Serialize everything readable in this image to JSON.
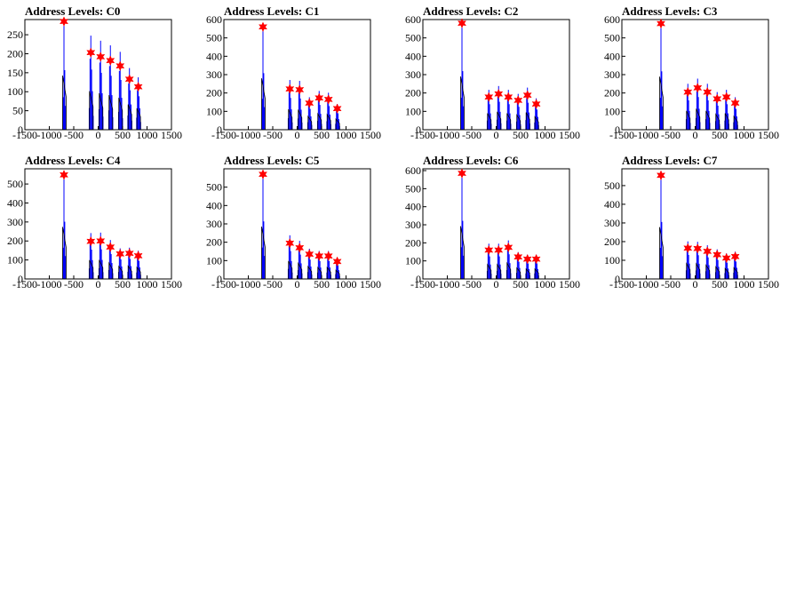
{
  "colors": {
    "histogram": "#0000ff",
    "outline": "#000000",
    "marker": "#ff0000",
    "background": "#ffffff"
  },
  "chart_data": [
    {
      "type": "bar",
      "title": "Address Levels: C0",
      "xlim": [
        -1500,
        1500
      ],
      "ylim": [
        0,
        290
      ],
      "xticks": [
        -1500,
        -1000,
        -500,
        0,
        500,
        1000,
        1500
      ],
      "xtick_labels": [
        "-1500",
        "-1000",
        "-500",
        "0",
        "500",
        "1000",
        "1500"
      ],
      "yticks": [
        0,
        50,
        100,
        150,
        200,
        250
      ],
      "ytick_labels": [
        "0",
        "50",
        "100",
        "150",
        "200",
        "250"
      ],
      "peaks": [
        {
          "x": -700,
          "y": 285
        },
        {
          "x": -150,
          "y": 203
        },
        {
          "x": 50,
          "y": 192
        },
        {
          "x": 250,
          "y": 182
        },
        {
          "x": 450,
          "y": 168
        },
        {
          "x": 640,
          "y": 133
        },
        {
          "x": 820,
          "y": 113
        }
      ]
    },
    {
      "type": "bar",
      "title": "Address Levels: C1",
      "xlim": [
        -1500,
        1500
      ],
      "ylim": [
        0,
        600
      ],
      "xticks": [
        -1500,
        -1000,
        -500,
        0,
        500,
        1000,
        1500
      ],
      "xtick_labels": [
        "-1500",
        "-1000",
        "-500",
        "0",
        "500",
        "1000",
        "1500"
      ],
      "yticks": [
        0,
        100,
        200,
        300,
        400,
        500,
        600
      ],
      "ytick_labels": [
        "0",
        "100",
        "200",
        "300",
        "400",
        "500",
        "600"
      ],
      "peaks": [
        {
          "x": -700,
          "y": 560
        },
        {
          "x": -150,
          "y": 222
        },
        {
          "x": 50,
          "y": 218
        },
        {
          "x": 250,
          "y": 145
        },
        {
          "x": 450,
          "y": 173
        },
        {
          "x": 640,
          "y": 165
        },
        {
          "x": 820,
          "y": 115
        }
      ]
    },
    {
      "type": "bar",
      "title": "Address Levels: C2",
      "xlim": [
        -1500,
        1500
      ],
      "ylim": [
        0,
        600
      ],
      "xticks": [
        -1500,
        -1000,
        -500,
        0,
        500,
        1000,
        1500
      ],
      "xtick_labels": [
        "-1500",
        "-1000",
        "-500",
        "0",
        "500",
        "1000",
        "1500"
      ],
      "yticks": [
        0,
        100,
        200,
        300,
        400,
        500,
        600
      ],
      "ytick_labels": [
        "0",
        "100",
        "200",
        "300",
        "400",
        "500",
        "600"
      ],
      "peaks": [
        {
          "x": -700,
          "y": 580
        },
        {
          "x": -150,
          "y": 178
        },
        {
          "x": 50,
          "y": 195
        },
        {
          "x": 250,
          "y": 178
        },
        {
          "x": 450,
          "y": 160
        },
        {
          "x": 640,
          "y": 188
        },
        {
          "x": 820,
          "y": 140
        }
      ]
    },
    {
      "type": "bar",
      "title": "Address Levels: C3",
      "xlim": [
        -1500,
        1500
      ],
      "ylim": [
        0,
        600
      ],
      "xticks": [
        -1500,
        -1000,
        -500,
        0,
        500,
        1000,
        1500
      ],
      "xtick_labels": [
        "-1500",
        "-1000",
        "-500",
        "0",
        "500",
        "1000",
        "1500"
      ],
      "yticks": [
        0,
        100,
        200,
        300,
        400,
        500,
        600
      ],
      "ytick_labels": [
        "0",
        "100",
        "200",
        "300",
        "400",
        "500",
        "600"
      ],
      "peaks": [
        {
          "x": -700,
          "y": 578
        },
        {
          "x": -150,
          "y": 205
        },
        {
          "x": 50,
          "y": 228
        },
        {
          "x": 250,
          "y": 205
        },
        {
          "x": 450,
          "y": 168
        },
        {
          "x": 640,
          "y": 178
        },
        {
          "x": 820,
          "y": 145
        }
      ]
    },
    {
      "type": "bar",
      "title": "Address Levels: C4",
      "xlim": [
        -1500,
        1500
      ],
      "ylim": [
        0,
        580
      ],
      "xticks": [
        -1500,
        -1000,
        -500,
        0,
        500,
        1000,
        1500
      ],
      "xtick_labels": [
        "-1500",
        "-1000",
        "-500",
        "0",
        "500",
        "1000",
        "1500"
      ],
      "yticks": [
        0,
        100,
        200,
        300,
        400,
        500
      ],
      "ytick_labels": [
        "0",
        "100",
        "200",
        "300",
        "400",
        "500"
      ],
      "peaks": [
        {
          "x": -700,
          "y": 548
        },
        {
          "x": -150,
          "y": 198
        },
        {
          "x": 50,
          "y": 200
        },
        {
          "x": 250,
          "y": 168
        },
        {
          "x": 450,
          "y": 132
        },
        {
          "x": 640,
          "y": 135
        },
        {
          "x": 820,
          "y": 122
        }
      ]
    },
    {
      "type": "bar",
      "title": "Address Levels: C5",
      "xlim": [
        -1500,
        1500
      ],
      "ylim": [
        0,
        600
      ],
      "xticks": [
        -1500,
        -1000,
        -500,
        0,
        500,
        1000,
        1500
      ],
      "xtick_labels": [
        "-1500",
        "-1000",
        "-500",
        "0",
        "500",
        "1000",
        "1500"
      ],
      "yticks": [
        0,
        100,
        200,
        300,
        400,
        500
      ],
      "ytick_labels": [
        "0",
        "100",
        "200",
        "300",
        "400",
        "500"
      ],
      "peaks": [
        {
          "x": -700,
          "y": 570
        },
        {
          "x": -150,
          "y": 195
        },
        {
          "x": 50,
          "y": 170
        },
        {
          "x": 250,
          "y": 135
        },
        {
          "x": 450,
          "y": 125
        },
        {
          "x": 640,
          "y": 125
        },
        {
          "x": 820,
          "y": 95
        }
      ]
    },
    {
      "type": "bar",
      "title": "Address Levels: C6",
      "xlim": [
        -1500,
        1500
      ],
      "ylim": [
        0,
        610
      ],
      "xticks": [
        -1500,
        -1000,
        -500,
        0,
        500,
        1000,
        1500
      ],
      "xtick_labels": [
        "-1500",
        "-1000",
        "-500",
        "0",
        "500",
        "1000",
        "1500"
      ],
      "yticks": [
        0,
        100,
        200,
        300,
        400,
        500,
        600
      ],
      "ytick_labels": [
        "0",
        "100",
        "200",
        "300",
        "400",
        "500",
        "600"
      ],
      "peaks": [
        {
          "x": -700,
          "y": 585
        },
        {
          "x": -150,
          "y": 160
        },
        {
          "x": 50,
          "y": 160
        },
        {
          "x": 250,
          "y": 175
        },
        {
          "x": 450,
          "y": 122
        },
        {
          "x": 640,
          "y": 110
        },
        {
          "x": 820,
          "y": 110
        }
      ]
    },
    {
      "type": "bar",
      "title": "Address Levels: C7",
      "xlim": [
        -1500,
        1500
      ],
      "ylim": [
        0,
        590
      ],
      "xticks": [
        -1500,
        -1000,
        -500,
        0,
        500,
        1000,
        1500
      ],
      "xtick_labels": [
        "-1500",
        "-1000",
        "-500",
        "0",
        "500",
        "1000",
        "1500"
      ],
      "yticks": [
        0,
        100,
        200,
        300,
        400,
        500
      ],
      "ytick_labels": [
        "0",
        "100",
        "200",
        "300",
        "400",
        "500"
      ],
      "peaks": [
        {
          "x": -700,
          "y": 555
        },
        {
          "x": -150,
          "y": 165
        },
        {
          "x": 50,
          "y": 163
        },
        {
          "x": 250,
          "y": 148
        },
        {
          "x": 450,
          "y": 130
        },
        {
          "x": 640,
          "y": 112
        },
        {
          "x": 820,
          "y": 120
        }
      ]
    }
  ]
}
